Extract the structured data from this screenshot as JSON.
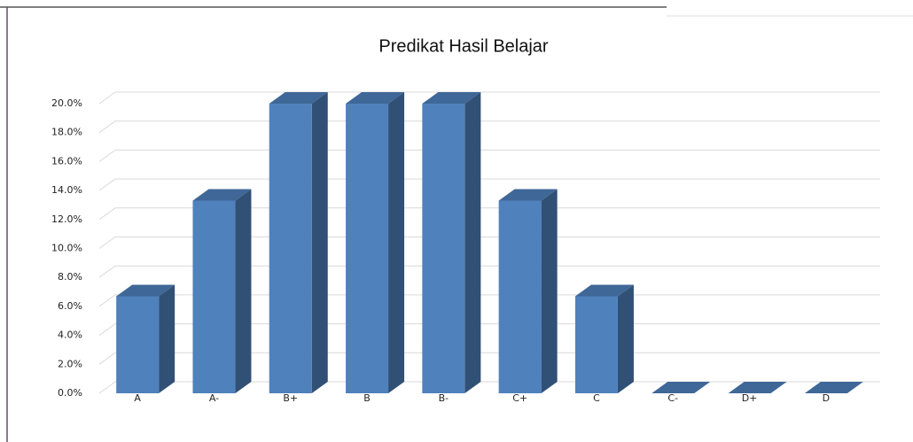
{
  "chart_data": {
    "type": "bar3d",
    "title": "Predikat Hasil Belajar",
    "categories": [
      "A",
      "A-",
      "B+",
      "B",
      "B-",
      "C+",
      "C",
      "C-",
      "D+",
      "D"
    ],
    "values": [
      6.7,
      13.3,
      20,
      20,
      20,
      13.3,
      6.7,
      0,
      0,
      0
    ],
    "color": "#4f81bd",
    "ylim": [
      0,
      20
    ],
    "yticks": [
      {
        "value": 0,
        "label": "0.0%"
      },
      {
        "value": 2,
        "label": "2.0%"
      },
      {
        "value": 4,
        "label": "4.0%"
      },
      {
        "value": 6,
        "label": "6.0%"
      },
      {
        "value": 8,
        "label": "8.0%"
      },
      {
        "value": 10,
        "label": "10.0%"
      },
      {
        "value": 12,
        "label": "12.0%"
      },
      {
        "value": 14,
        "label": "14.0%"
      },
      {
        "value": 16,
        "label": "16.0%"
      },
      {
        "value": 18,
        "label": "18.0%"
      },
      {
        "value": 20,
        "label": "20.0%"
      }
    ],
    "grid": true
  }
}
